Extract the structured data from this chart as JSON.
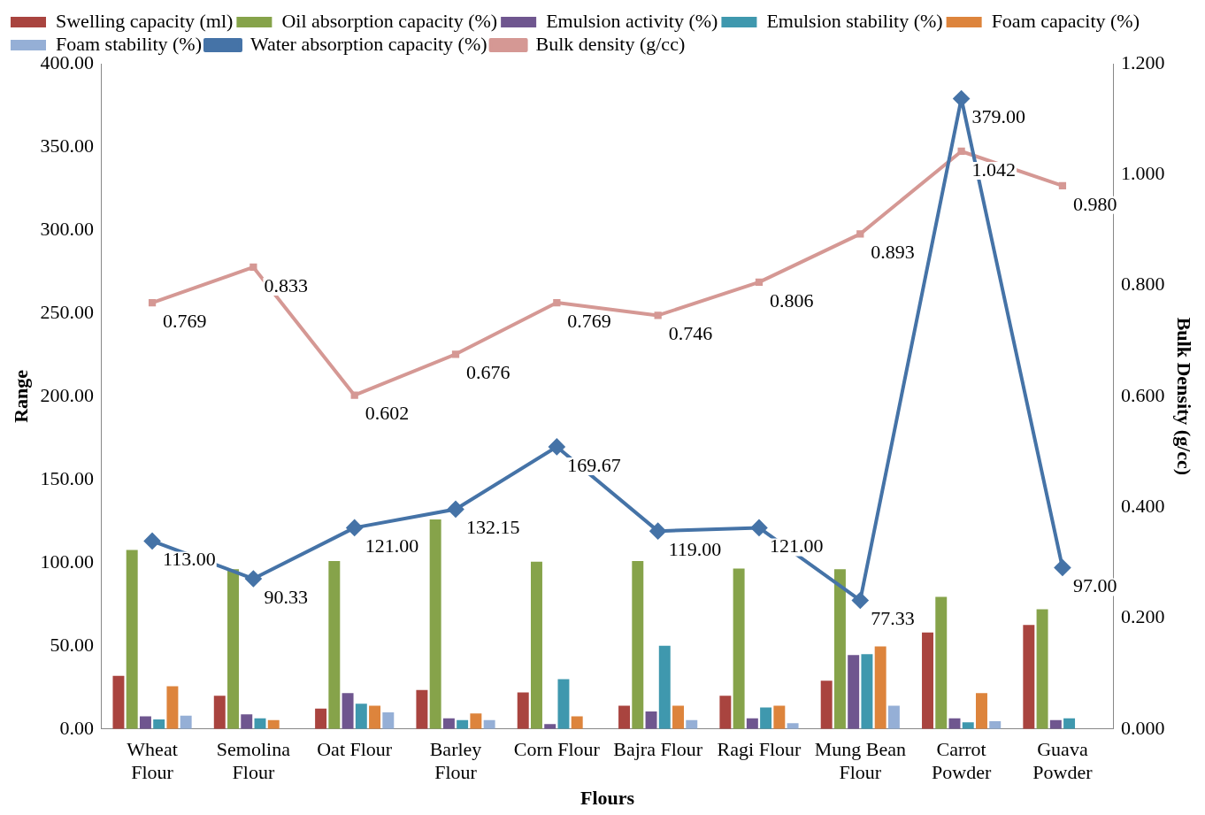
{
  "chart_data": {
    "type": "bar",
    "xlabel": "Flours",
    "ylabel": "Range",
    "y2label": "Bulk Density (g/cc)",
    "categories": [
      "Wheat Flour",
      "Semolina Flour",
      "Oat Flour",
      "Barley Flour",
      "Corn Flour",
      "Bajra Flour",
      "Ragi Flour",
      "Mung Bean Flour",
      "Carrot Powder",
      "Guava Powder"
    ],
    "series": [
      {
        "name": "Swelling capacity (ml)",
        "color": "#a9443f",
        "values": [
          32,
          20,
          12.3,
          23.4,
          22,
          14,
          20,
          29,
          58,
          62.5
        ]
      },
      {
        "name": "Oil absorption capacity (%)",
        "color": "#86a34a",
        "values": [
          107.6,
          96,
          101,
          126,
          100.6,
          101,
          96.5,
          96,
          79.5,
          72
        ]
      },
      {
        "name": "Emulsion activity (%)",
        "color": "#6f568f",
        "values": [
          7.6,
          8.8,
          21.6,
          6.4,
          3,
          10.5,
          6.4,
          44.5,
          6.4,
          5.3
        ]
      },
      {
        "name": "Emulsion stability (%)",
        "color": "#3f98ae",
        "values": [
          5.8,
          6.4,
          15.2,
          5.3,
          30,
          50,
          12.9,
          45,
          4,
          6.4
        ]
      },
      {
        "name": "Foam capacity (%)",
        "color": "#dd843c",
        "values": [
          25.7,
          5.3,
          14,
          9.4,
          7.6,
          14,
          14,
          49.7,
          21.6,
          0
        ]
      },
      {
        "name": "Foam stability (%)",
        "color": "#95afd6",
        "values": [
          8,
          0,
          10,
          5.3,
          0,
          5.3,
          3.5,
          14,
          4.7,
          0
        ]
      },
      {
        "name": "Water absorption capacity (%)",
        "type": "line",
        "marker": "diamond",
        "color": "#4573a7",
        "values": [
          113,
          90.33,
          121,
          132.15,
          169.67,
          119,
          121,
          77.33,
          379,
          97
        ],
        "value_labels": [
          "113.00",
          "90.33",
          "121.00",
          "132.15",
          "169.67",
          "119.00",
          "121.00",
          "77.33",
          "379.00",
          "97.00"
        ]
      },
      {
        "name": "Bulk density (g/cc)",
        "type": "line",
        "marker": "square",
        "axis": "y2",
        "color": "#d59894",
        "values": [
          0.769,
          0.833,
          0.602,
          0.676,
          0.769,
          0.746,
          0.806,
          0.893,
          1.042,
          0.98
        ],
        "value_labels": [
          "0.769",
          "0.833",
          "0.602",
          "0.676",
          "0.769",
          "0.746",
          "0.806",
          "0.893",
          "1.042",
          "0.980"
        ]
      }
    ],
    "ylim": [
      0,
      400
    ],
    "yticks": [
      {
        "value": 0,
        "label": "0.00"
      },
      {
        "value": 50,
        "label": "50.00"
      },
      {
        "value": 100,
        "label": "100.00"
      },
      {
        "value": 150,
        "label": "150.00"
      },
      {
        "value": 200,
        "label": "200.00"
      },
      {
        "value": 250,
        "label": "250.00"
      },
      {
        "value": 300,
        "label": "300.00"
      },
      {
        "value": 350,
        "label": "350.00"
      },
      {
        "value": 400,
        "label": "400.00"
      }
    ],
    "y2lim": [
      0,
      1.2
    ],
    "y2ticks": [
      {
        "value": 0,
        "label": "0.000"
      },
      {
        "value": 0.2,
        "label": "0.200"
      },
      {
        "value": 0.4,
        "label": "0.400"
      },
      {
        "value": 0.6,
        "label": "0.600"
      },
      {
        "value": 0.8,
        "label": "0.800"
      },
      {
        "value": 1,
        "label": "1.000"
      },
      {
        "value": 1.2,
        "label": "1.200"
      }
    ],
    "grid": false,
    "legend": "top"
  }
}
